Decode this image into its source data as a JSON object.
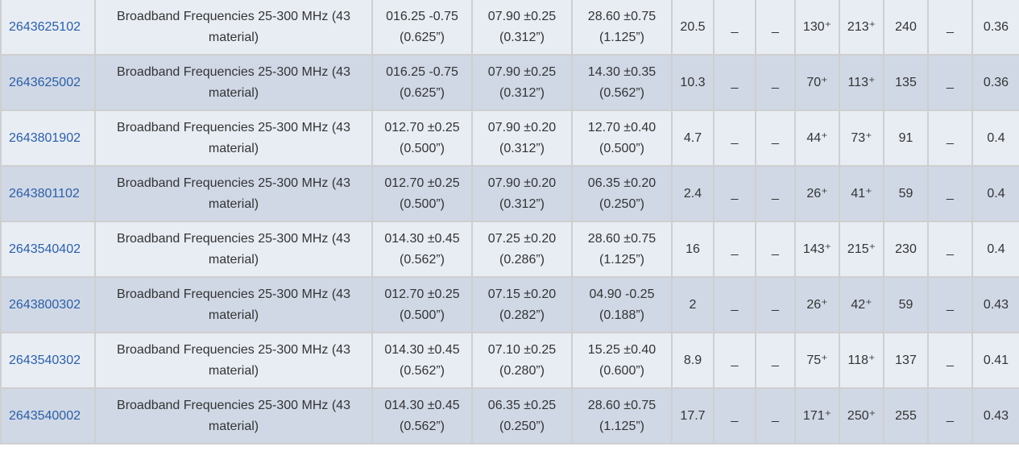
{
  "rows": [
    {
      "part": "2643625102",
      "desc": "Broadband Frequencies 25-300 MHz (43 material)",
      "a": [
        "016.25 -0.75",
        "(0.625”)"
      ],
      "b": [
        "07.90 ±0.25",
        "(0.312”)"
      ],
      "c": [
        "28.60 ±0.75",
        "(1.125”)"
      ],
      "w": "20.5",
      "d1": "_",
      "d2": "_",
      "z1": "130⁺",
      "z2": "213⁺",
      "z3": "240",
      "d3": "_",
      "v": "0.36"
    },
    {
      "part": "2643625002",
      "desc": "Broadband Frequencies 25-300 MHz (43 material)",
      "a": [
        "016.25 -0.75",
        "(0.625”)"
      ],
      "b": [
        "07.90 ±0.25",
        "(0.312”)"
      ],
      "c": [
        "14.30 ±0.35",
        "(0.562”)"
      ],
      "w": "10.3",
      "d1": "_",
      "d2": "_",
      "z1": "70⁺",
      "z2": "113⁺",
      "z3": "135",
      "d3": "_",
      "v": "0.36"
    },
    {
      "part": "2643801902",
      "desc": "Broadband Frequencies 25-300 MHz (43 material)",
      "a": [
        "012.70 ±0.25",
        "(0.500”)"
      ],
      "b": [
        "07.90 ±0.20",
        "(0.312”)"
      ],
      "c": [
        "12.70 ±0.40",
        "(0.500”)"
      ],
      "w": "4.7",
      "d1": "_",
      "d2": "_",
      "z1": "44⁺",
      "z2": "73⁺",
      "z3": "91",
      "d3": "_",
      "v": "0.4"
    },
    {
      "part": "2643801102",
      "desc": "Broadband Frequencies 25-300 MHz (43 material)",
      "a": [
        "012.70 ±0.25",
        "(0.500”)"
      ],
      "b": [
        "07.90 ±0.20",
        "(0.312”)"
      ],
      "c": [
        "06.35 ±0.20",
        "(0.250”)"
      ],
      "w": "2.4",
      "d1": "_",
      "d2": "_",
      "z1": "26⁺",
      "z2": "41⁺",
      "z3": "59",
      "d3": "_",
      "v": "0.4"
    },
    {
      "part": "2643540402",
      "desc": "Broadband Frequencies 25-300 MHz (43 material)",
      "a": [
        "014.30 ±0.45",
        "(0.562”)"
      ],
      "b": [
        "07.25 ±0.20",
        "(0.286”)"
      ],
      "c": [
        "28.60 ±0.75",
        "(1.125”)"
      ],
      "w": "16",
      "d1": "_",
      "d2": "_",
      "z1": "143⁺",
      "z2": "215⁺",
      "z3": "230",
      "d3": "_",
      "v": "0.4"
    },
    {
      "part": "2643800302",
      "desc": "Broadband Frequencies 25-300 MHz (43 material)",
      "a": [
        "012.70 ±0.25",
        "(0.500”)"
      ],
      "b": [
        "07.15 ±0.20",
        "(0.282”)"
      ],
      "c": [
        "04.90 -0.25",
        "(0.188”)"
      ],
      "w": "2",
      "d1": "_",
      "d2": "_",
      "z1": "26⁺",
      "z2": "42⁺",
      "z3": "59",
      "d3": "_",
      "v": "0.43"
    },
    {
      "part": "2643540302",
      "desc": "Broadband Frequencies 25-300 MHz (43 material)",
      "a": [
        "014.30 ±0.45",
        "(0.562”)"
      ],
      "b": [
        "07.10 ±0.25",
        "(0.280”)"
      ],
      "c": [
        "15.25 ±0.40",
        "(0.600”)"
      ],
      "w": "8.9",
      "d1": "_",
      "d2": "_",
      "z1": "75⁺",
      "z2": "118⁺",
      "z3": "137",
      "d3": "_",
      "v": "0.41"
    },
    {
      "part": "2643540002",
      "desc": "Broadband Frequencies 25-300 MHz (43 material)",
      "a": [
        "014.30 ±0.45",
        "(0.562”)"
      ],
      "b": [
        "06.35 ±0.25",
        "(0.250”)"
      ],
      "c": [
        "28.60 ±0.75",
        "(1.125”)"
      ],
      "w": "17.7",
      "d1": "_",
      "d2": "_",
      "z1": "171⁺",
      "z2": "250⁺",
      "z3": "255",
      "d3": "_",
      "v": "0.43"
    }
  ]
}
